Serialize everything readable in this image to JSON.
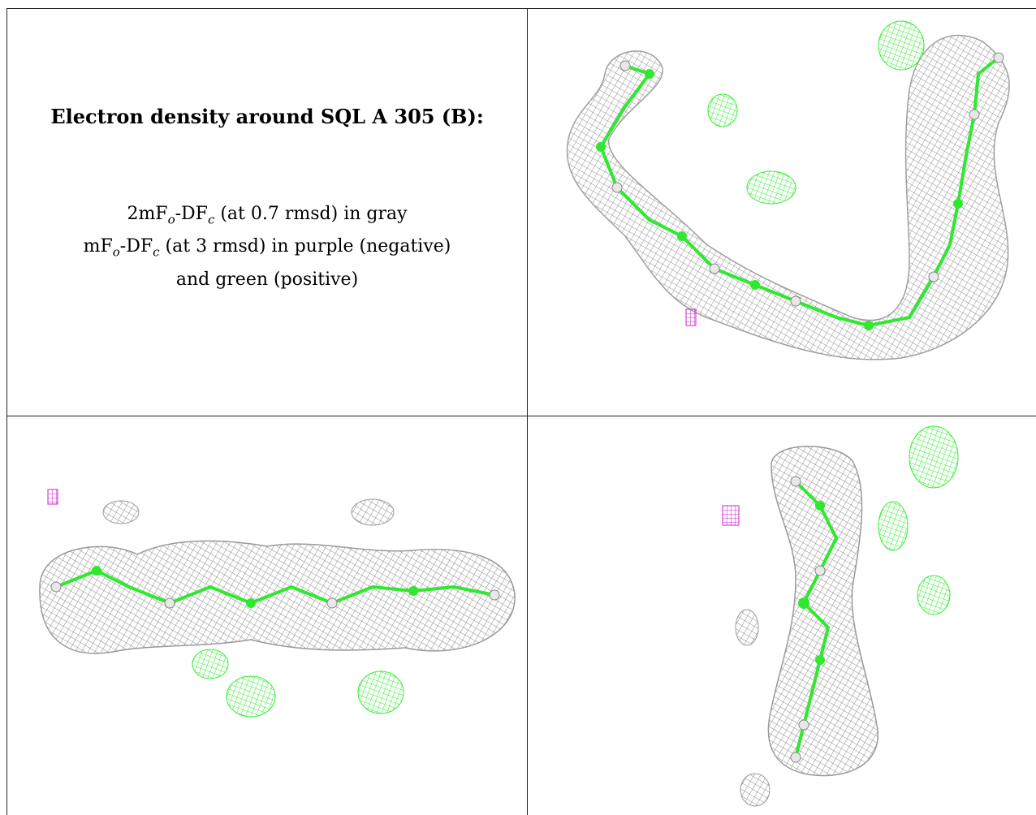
{
  "title": "Electron density around SQL A 305 (B):",
  "legend": {
    "line1": {
      "prefix": "2mF",
      "sub1": "o",
      "mid": "-DF",
      "sub2": "c",
      "suffix": " (at 0.7 rmsd) in gray"
    },
    "line2": {
      "prefix": "mF",
      "sub1": "o",
      "mid": "-DF",
      "sub2": "c",
      "suffix": " (at 3 rmsd) in purple (negative)"
    },
    "line3": "and green (positive)"
  },
  "colors": {
    "gray_density": "#8c8c8c",
    "negative_density": "#cc22cc",
    "positive_density": "#33ee33",
    "atom_carbon": "#2fe82f",
    "atom_hydrogen": "#e8e8e8"
  },
  "panels": [
    {
      "name": "view-u-shape"
    },
    {
      "name": "view-horizontal"
    },
    {
      "name": "view-vertical"
    }
  ]
}
